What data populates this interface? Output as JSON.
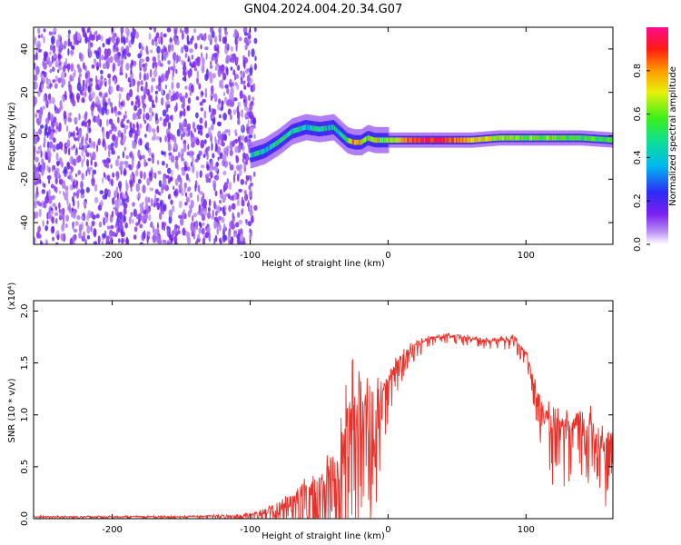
{
  "title": "GN04.2024.004.20.34.G07",
  "chart_data": [
    {
      "type": "heatmap",
      "xlabel": "Height of straight line (km)",
      "ylabel": "Frequency (Hz)",
      "xlim": [
        -257,
        163
      ],
      "ylim": [
        -50,
        50
      ],
      "x_ticks": [
        -200,
        -100,
        0,
        100
      ],
      "y_ticks": [
        -40,
        -20,
        0,
        20,
        40
      ],
      "grid": false,
      "colorbar": {
        "label": "Normalized spectral amplitude",
        "range": [
          0.0,
          1.0
        ],
        "ticks": [
          0.0,
          0.2,
          0.4,
          0.6,
          0.8
        ],
        "colormap": "rainbow (white-purple-blue-cyan-green-yellow-red-magenta)"
      },
      "noise_region": {
        "x_range": [
          -257,
          -100
        ],
        "frequency_range": [
          -50,
          50
        ],
        "amplitude_range": [
          0.05,
          0.15
        ]
      },
      "signal_track": [
        {
          "x": -100,
          "f": -9,
          "amplitude": 0.45
        },
        {
          "x": -90,
          "f": -7,
          "amplitude": 0.4
        },
        {
          "x": -80,
          "f": -3,
          "amplitude": 0.45
        },
        {
          "x": -70,
          "f": 2,
          "amplitude": 0.5
        },
        {
          "x": -60,
          "f": 4,
          "amplitude": 0.45
        },
        {
          "x": -50,
          "f": 3,
          "amplitude": 0.45
        },
        {
          "x": -40,
          "f": 4,
          "amplitude": 0.4
        },
        {
          "x": -35,
          "f": 1,
          "amplitude": 0.45
        },
        {
          "x": -30,
          "f": -2,
          "amplitude": 0.55
        },
        {
          "x": -25,
          "f": -3,
          "amplitude": 0.8
        },
        {
          "x": -20,
          "f": -3,
          "amplitude": 0.75
        },
        {
          "x": -15,
          "f": -1,
          "amplitude": 0.6
        },
        {
          "x": -10,
          "f": -2,
          "amplitude": 0.7
        },
        {
          "x": 0,
          "f": -2,
          "amplitude": 0.6
        },
        {
          "x": 20,
          "f": -2,
          "amplitude": 0.9
        },
        {
          "x": 40,
          "f": -2,
          "amplitude": 0.9
        },
        {
          "x": 60,
          "f": -2,
          "amplitude": 0.75
        },
        {
          "x": 80,
          "f": -1,
          "amplitude": 0.65
        },
        {
          "x": 100,
          "f": -1,
          "amplitude": 0.6
        },
        {
          "x": 120,
          "f": -1,
          "amplitude": 0.6
        },
        {
          "x": 140,
          "f": -1,
          "amplitude": 0.55
        },
        {
          "x": 163,
          "f": -2,
          "amplitude": 0.55
        }
      ]
    },
    {
      "type": "line",
      "xlabel": "Height of straight line (km)",
      "ylabel": "SNR (10 * v/v)",
      "y_scale_label": "(x10⁴)",
      "xlim": [
        -257,
        163
      ],
      "ylim": [
        0,
        2.1
      ],
      "x_ticks": [
        -200,
        -100,
        0,
        100
      ],
      "y_ticks": [
        "0.0",
        "0.5",
        "1.0",
        "1.5",
        "2.0"
      ],
      "grid": false,
      "color": "#e8312a",
      "x": [
        -257,
        -200,
        -150,
        -110,
        -95,
        -85,
        -75,
        -65,
        -55,
        -45,
        -40,
        -35,
        -30,
        -25,
        -20,
        -15,
        -10,
        -5,
        0,
        10,
        20,
        30,
        40,
        50,
        60,
        70,
        80,
        90,
        100,
        105,
        110,
        115,
        120,
        125,
        130,
        135,
        140,
        145,
        150,
        155,
        158,
        160,
        163
      ],
      "values": [
        0.02,
        0.02,
        0.02,
        0.03,
        0.05,
        0.08,
        0.14,
        0.22,
        0.3,
        0.35,
        0.45,
        0.6,
        0.8,
        1.0,
        1.1,
        1.15,
        1.2,
        1.25,
        1.35,
        1.55,
        1.68,
        1.74,
        1.76,
        1.76,
        1.74,
        1.72,
        1.72,
        1.75,
        1.6,
        1.35,
        1.1,
        0.95,
        0.9,
        0.85,
        0.85,
        0.9,
        0.95,
        0.9,
        0.85,
        0.75,
        0.7,
        0.75,
        0.8
      ],
      "envelope": [
        0.02,
        0.02,
        0.03,
        0.04,
        0.08,
        0.18,
        0.3,
        0.45,
        0.55,
        0.6,
        0.85,
        1.1,
        1.3,
        1.5,
        1.3,
        1.3,
        1.0,
        0.65,
        0.35,
        0.2,
        0.12,
        0.08,
        0.07,
        0.07,
        0.07,
        0.08,
        0.08,
        0.1,
        0.12,
        0.2,
        0.35,
        0.5,
        0.5,
        0.55,
        0.55,
        0.5,
        0.55,
        0.55,
        0.55,
        0.55,
        0.5,
        0.45,
        0.4
      ]
    }
  ]
}
